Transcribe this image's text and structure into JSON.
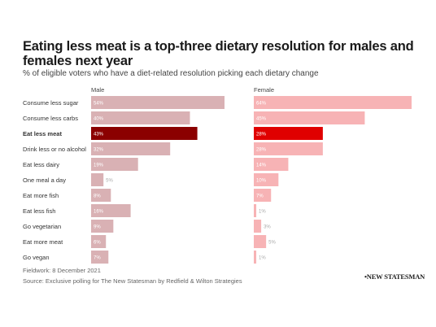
{
  "title": "Eating less meat is a top-three dietary resolution for males and females next year",
  "subtitle": "% of eligible voters who have a diet-related resolution picking each dietary change",
  "footer": {
    "fieldwork": "Fieldwork: 8 December 2021",
    "source": "Source: Exclusive polling for The New Statesman by Redfield & Wilton Strategies"
  },
  "logo": "•NEW STATESMAN",
  "colors": {
    "male_bar": "#d9b1b4",
    "male_highlight": "#8b0000",
    "female_bar": "#f7b3b5",
    "female_highlight": "#e00000"
  },
  "chart_data": {
    "type": "bar",
    "orientation": "horizontal",
    "highlight_category": "Eat less meat",
    "categories": [
      "Consume less sugar",
      "Consume less carbs",
      "Eat less meat",
      "Drink less or no alcohol",
      "Eat less dairy",
      "One meal a day",
      "Eat more fish",
      "Eat less fish",
      "Go vegetarian",
      "Eat more meat",
      "Go vegan"
    ],
    "series": [
      {
        "name": "Male",
        "values": [
          54,
          40,
          43,
          32,
          19,
          5,
          8,
          16,
          9,
          6,
          7
        ]
      },
      {
        "name": "Female",
        "values": [
          64,
          45,
          28,
          28,
          14,
          10,
          7,
          1,
          3,
          5,
          1
        ]
      }
    ],
    "value_labels": {
      "Male": [
        "54%",
        "40%",
        "43%",
        "32%",
        "19%",
        "5%",
        "8%",
        "16%",
        "9%",
        "6%",
        "7%"
      ],
      "Female": [
        "64%",
        "45%",
        "28%",
        "28%",
        "14%",
        "10%",
        "7%",
        "1%",
        "3%",
        "5%",
        "1%"
      ]
    },
    "xlim": [
      0,
      64
    ],
    "grid": false,
    "legend": "none"
  }
}
